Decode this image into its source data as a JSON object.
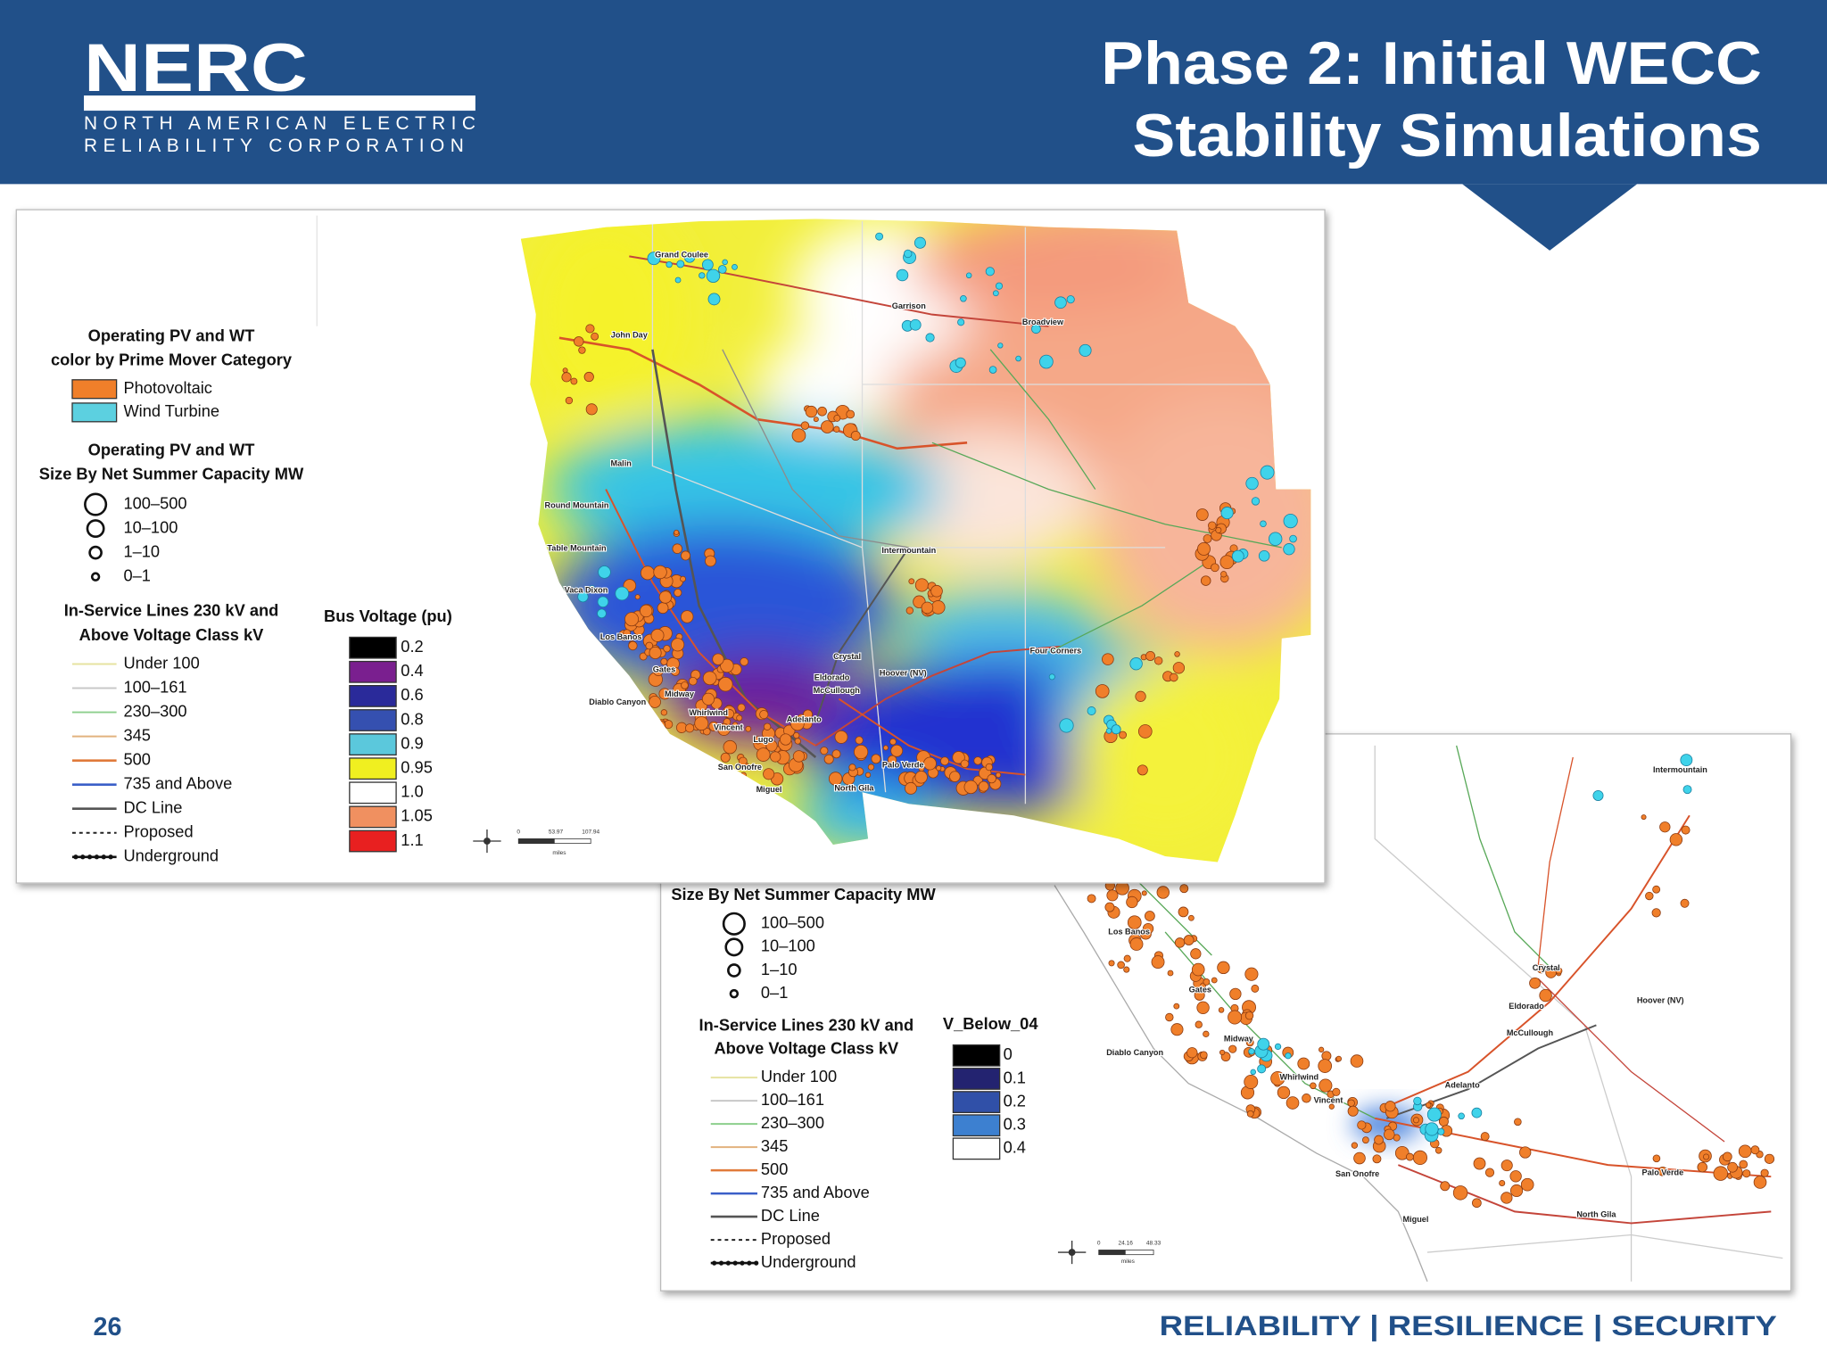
{
  "header": {
    "logo": "NERC",
    "org_line1": "NORTH AMERICAN ELECTRIC",
    "org_line2": "RELIABILITY CORPORATION",
    "title_line1": "Phase 2: Initial WECC",
    "title_line2": "Stability Simulations"
  },
  "map1": {
    "legend": {
      "pv_title_1": "Operating PV and WT",
      "pv_title_2": "color by Prime Mover Category",
      "prime_mover": [
        "Photovoltaic",
        "Wind Turbine"
      ],
      "size_title_1": "Operating PV and WT",
      "size_title_2": "Size By Net Summer Capacity MW",
      "sizes": [
        "100–500",
        "10–100",
        "1–10",
        "0–1"
      ],
      "lines_title_1": "In-Service Lines 230 kV and",
      "lines_title_2": "Above Voltage Class kV",
      "lines": [
        "Under 100",
        "100–161",
        "230–300",
        "345",
        "500",
        "735 and Above",
        "DC Line",
        "Proposed",
        "Underground"
      ],
      "voltage_title": "Bus Voltage (pu)",
      "voltage": [
        "0.2",
        "0.4",
        "0.6",
        "0.8",
        "0.9",
        "0.95",
        "1.0",
        "1.05",
        "1.1"
      ]
    },
    "place_labels": [
      "Grand Coulee",
      "Garrison",
      "Broadview",
      "John Day",
      "Malin",
      "Round Mountain",
      "Table Mountain",
      "Vaca Dixon",
      "Los Banos",
      "Gates",
      "Midway",
      "Diablo Canyon",
      "Whirlwind",
      "Vincent",
      "Lugo",
      "Adelanto",
      "Eldorado",
      "McCullough",
      "Crystal",
      "Hoover (NV)",
      "Intermountain",
      "Four Corners",
      "Palo Verde",
      "North Gila",
      "Miguel",
      "San Onofre"
    ],
    "scale_labels": [
      "0",
      "53.97",
      "107.94",
      "miles"
    ]
  },
  "map2": {
    "legend": {
      "size_title": "Size By Net Summer Capacity MW",
      "sizes": [
        "100–500",
        "10–100",
        "1–10",
        "0–1"
      ],
      "lines_title_1": "In-Service Lines 230 kV and",
      "lines_title_2": "Above Voltage Class kV",
      "lines": [
        "Under 100",
        "100–161",
        "230–300",
        "345",
        "500",
        "735 and Above",
        "DC Line",
        "Proposed",
        "Underground"
      ],
      "voltage_title": "V_Below_04",
      "voltage": [
        "0",
        "0.1",
        "0.2",
        "0.3",
        "0.4"
      ]
    },
    "place_labels": [
      "Intermountain",
      "Crystal",
      "Eldorado",
      "Hoover (NV)",
      "McCullough",
      "Los Banos",
      "Gates",
      "Midway",
      "Diablo Canyon",
      "Whirlwind",
      "Vincent",
      "Adelanto",
      "San Onofre",
      "Palo Verde",
      "North Gila",
      "Miguel"
    ],
    "scale_labels": [
      "0",
      "24.16",
      "48.33",
      "miles"
    ]
  },
  "footer": {
    "page": "26",
    "tagline": "RELIABILITY | RESILIENCE | SECURITY"
  }
}
